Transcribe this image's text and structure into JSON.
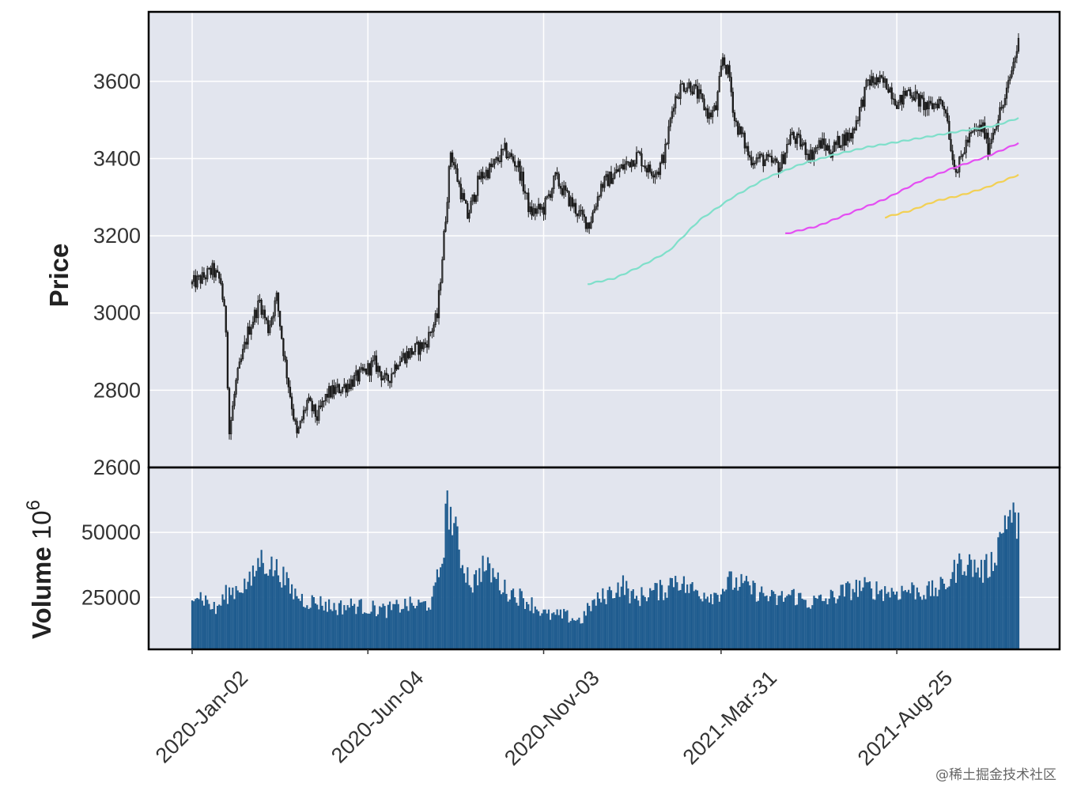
{
  "chart_data": {
    "type": "candlestick_with_volume",
    "price_panel": {
      "ylabel": "Price",
      "ylim": [
        2600,
        3780
      ],
      "yticks": [
        2600,
        2800,
        3000,
        3200,
        3400,
        3600
      ],
      "ohlc_close_waypoints": [
        {
          "i": 0,
          "v": 3075
        },
        {
          "i": 6,
          "v": 3090
        },
        {
          "i": 12,
          "v": 3110
        },
        {
          "i": 17,
          "v": 3080
        },
        {
          "i": 20,
          "v": 2960
        },
        {
          "i": 22,
          "v": 2690
        },
        {
          "i": 26,
          "v": 2820
        },
        {
          "i": 33,
          "v": 2950
        },
        {
          "i": 40,
          "v": 3030
        },
        {
          "i": 45,
          "v": 2960
        },
        {
          "i": 50,
          "v": 3040
        },
        {
          "i": 55,
          "v": 2870
        },
        {
          "i": 62,
          "v": 2680
        },
        {
          "i": 68,
          "v": 2770
        },
        {
          "i": 74,
          "v": 2730
        },
        {
          "i": 80,
          "v": 2790
        },
        {
          "i": 90,
          "v": 2810
        },
        {
          "i": 100,
          "v": 2840
        },
        {
          "i": 108,
          "v": 2870
        },
        {
          "i": 115,
          "v": 2820
        },
        {
          "i": 122,
          "v": 2880
        },
        {
          "i": 130,
          "v": 2900
        },
        {
          "i": 138,
          "v": 2920
        },
        {
          "i": 145,
          "v": 2990
        },
        {
          "i": 150,
          "v": 3250
        },
        {
          "i": 153,
          "v": 3420
        },
        {
          "i": 158,
          "v": 3330
        },
        {
          "i": 163,
          "v": 3250
        },
        {
          "i": 170,
          "v": 3350
        },
        {
          "i": 178,
          "v": 3380
        },
        {
          "i": 185,
          "v": 3420
        },
        {
          "i": 193,
          "v": 3380
        },
        {
          "i": 200,
          "v": 3260
        },
        {
          "i": 208,
          "v": 3270
        },
        {
          "i": 215,
          "v": 3350
        },
        {
          "i": 222,
          "v": 3300
        },
        {
          "i": 230,
          "v": 3250
        },
        {
          "i": 235,
          "v": 3230
        },
        {
          "i": 242,
          "v": 3330
        },
        {
          "i": 250,
          "v": 3360
        },
        {
          "i": 258,
          "v": 3390
        },
        {
          "i": 264,
          "v": 3410
        },
        {
          "i": 270,
          "v": 3370
        },
        {
          "i": 276,
          "v": 3370
        },
        {
          "i": 280,
          "v": 3420
        },
        {
          "i": 285,
          "v": 3550
        },
        {
          "i": 290,
          "v": 3590
        },
        {
          "i": 295,
          "v": 3590
        },
        {
          "i": 300,
          "v": 3560
        },
        {
          "i": 306,
          "v": 3510
        },
        {
          "i": 310,
          "v": 3530
        },
        {
          "i": 314,
          "v": 3660
        },
        {
          "i": 318,
          "v": 3610
        },
        {
          "i": 321,
          "v": 3500
        },
        {
          "i": 326,
          "v": 3450
        },
        {
          "i": 330,
          "v": 3400
        },
        {
          "i": 336,
          "v": 3400
        },
        {
          "i": 342,
          "v": 3390
        },
        {
          "i": 348,
          "v": 3380
        },
        {
          "i": 354,
          "v": 3460
        },
        {
          "i": 360,
          "v": 3440
        },
        {
          "i": 366,
          "v": 3410
        },
        {
          "i": 372,
          "v": 3440
        },
        {
          "i": 378,
          "v": 3420
        },
        {
          "i": 384,
          "v": 3450
        },
        {
          "i": 390,
          "v": 3460
        },
        {
          "i": 396,
          "v": 3540
        },
        {
          "i": 400,
          "v": 3600
        },
        {
          "i": 406,
          "v": 3600
        },
        {
          "i": 412,
          "v": 3590
        },
        {
          "i": 418,
          "v": 3540
        },
        {
          "i": 424,
          "v": 3580
        },
        {
          "i": 430,
          "v": 3550
        },
        {
          "i": 436,
          "v": 3530
        },
        {
          "i": 442,
          "v": 3550
        },
        {
          "i": 446,
          "v": 3530
        },
        {
          "i": 450,
          "v": 3400
        },
        {
          "i": 453,
          "v": 3370
        },
        {
          "i": 458,
          "v": 3440
        },
        {
          "i": 463,
          "v": 3470
        },
        {
          "i": 468,
          "v": 3480
        },
        {
          "i": 471,
          "v": 3430
        },
        {
          "i": 476,
          "v": 3500
        },
        {
          "i": 481,
          "v": 3550
        },
        {
          "i": 485,
          "v": 3630
        },
        {
          "i": 489,
          "v": 3700
        }
      ],
      "moving_averages": [
        {
          "name": "MA-cyan",
          "color": "#7fdfca",
          "points": [
            {
              "i": 234,
              "v": 3075
            },
            {
              "i": 250,
              "v": 3090
            },
            {
              "i": 265,
              "v": 3120
            },
            {
              "i": 282,
              "v": 3160
            },
            {
              "i": 300,
              "v": 3240
            },
            {
              "i": 320,
              "v": 3300
            },
            {
              "i": 340,
              "v": 3350
            },
            {
              "i": 360,
              "v": 3385
            },
            {
              "i": 380,
              "v": 3410
            },
            {
              "i": 400,
              "v": 3430
            },
            {
              "i": 420,
              "v": 3445
            },
            {
              "i": 440,
              "v": 3460
            },
            {
              "i": 460,
              "v": 3475
            },
            {
              "i": 475,
              "v": 3485
            },
            {
              "i": 489,
              "v": 3505
            }
          ]
        },
        {
          "name": "MA-magenta",
          "color": "#e44ef2",
          "points": [
            {
              "i": 351,
              "v": 3205
            },
            {
              "i": 370,
              "v": 3225
            },
            {
              "i": 390,
              "v": 3260
            },
            {
              "i": 410,
              "v": 3295
            },
            {
              "i": 430,
              "v": 3340
            },
            {
              "i": 450,
              "v": 3375
            },
            {
              "i": 470,
              "v": 3405
            },
            {
              "i": 489,
              "v": 3440
            }
          ]
        },
        {
          "name": "MA-yellow",
          "color": "#f2d054",
          "points": [
            {
              "i": 410,
              "v": 3248
            },
            {
              "i": 425,
              "v": 3265
            },
            {
              "i": 440,
              "v": 3290
            },
            {
              "i": 455,
              "v": 3305
            },
            {
              "i": 470,
              "v": 3325
            },
            {
              "i": 489,
              "v": 3358
            }
          ]
        }
      ]
    },
    "volume_panel": {
      "ylabel": "Volume",
      "scale_label": "10",
      "scale_exponent": "6",
      "ylim": [
        5000,
        75000
      ],
      "yticks": [
        25000,
        50000
      ],
      "ytick_labels": [
        "25000",
        "50000"
      ],
      "volume_waypoints": [
        {
          "i": 0,
          "v": 28000
        },
        {
          "i": 8,
          "v": 24000
        },
        {
          "i": 14,
          "v": 20000
        },
        {
          "i": 20,
          "v": 26000
        },
        {
          "i": 28,
          "v": 29000
        },
        {
          "i": 35,
          "v": 31000
        },
        {
          "i": 40,
          "v": 40000
        },
        {
          "i": 46,
          "v": 37000
        },
        {
          "i": 52,
          "v": 35000
        },
        {
          "i": 58,
          "v": 28000
        },
        {
          "i": 66,
          "v": 24000
        },
        {
          "i": 75,
          "v": 23000
        },
        {
          "i": 85,
          "v": 21000
        },
        {
          "i": 95,
          "v": 22000
        },
        {
          "i": 105,
          "v": 21000
        },
        {
          "i": 115,
          "v": 20000
        },
        {
          "i": 125,
          "v": 22000
        },
        {
          "i": 135,
          "v": 22000
        },
        {
          "i": 142,
          "v": 23000
        },
        {
          "i": 148,
          "v": 40000
        },
        {
          "i": 151,
          "v": 61000
        },
        {
          "i": 155,
          "v": 52000
        },
        {
          "i": 160,
          "v": 38000
        },
        {
          "i": 166,
          "v": 30000
        },
        {
          "i": 172,
          "v": 37000
        },
        {
          "i": 178,
          "v": 34000
        },
        {
          "i": 185,
          "v": 28000
        },
        {
          "i": 192,
          "v": 26000
        },
        {
          "i": 200,
          "v": 23000
        },
        {
          "i": 210,
          "v": 18000
        },
        {
          "i": 220,
          "v": 18000
        },
        {
          "i": 230,
          "v": 16000
        },
        {
          "i": 236,
          "v": 22000
        },
        {
          "i": 245,
          "v": 26000
        },
        {
          "i": 255,
          "v": 30000
        },
        {
          "i": 262,
          "v": 24000
        },
        {
          "i": 270,
          "v": 27000
        },
        {
          "i": 280,
          "v": 28000
        },
        {
          "i": 286,
          "v": 33000
        },
        {
          "i": 292,
          "v": 29000
        },
        {
          "i": 300,
          "v": 27000
        },
        {
          "i": 310,
          "v": 26000
        },
        {
          "i": 318,
          "v": 31000
        },
        {
          "i": 325,
          "v": 30000
        },
        {
          "i": 335,
          "v": 27000
        },
        {
          "i": 345,
          "v": 24000
        },
        {
          "i": 355,
          "v": 26000
        },
        {
          "i": 365,
          "v": 23000
        },
        {
          "i": 375,
          "v": 24000
        },
        {
          "i": 385,
          "v": 27000
        },
        {
          "i": 395,
          "v": 29000
        },
        {
          "i": 405,
          "v": 28000
        },
        {
          "i": 415,
          "v": 27000
        },
        {
          "i": 425,
          "v": 28000
        },
        {
          "i": 435,
          "v": 27000
        },
        {
          "i": 445,
          "v": 29000
        },
        {
          "i": 450,
          "v": 34000
        },
        {
          "i": 456,
          "v": 39000
        },
        {
          "i": 462,
          "v": 37000
        },
        {
          "i": 468,
          "v": 35000
        },
        {
          "i": 474,
          "v": 39000
        },
        {
          "i": 478,
          "v": 48000
        },
        {
          "i": 482,
          "v": 57000
        },
        {
          "i": 486,
          "v": 55000
        },
        {
          "i": 489,
          "v": 53000
        }
      ],
      "color": "#1f5c8f"
    },
    "x_axis": {
      "n_bars": 490,
      "tick_positions": [
        0,
        104,
        208,
        313,
        417
      ],
      "tick_labels": [
        "2020-Jan-02",
        "2020-Jun-04",
        "2020-Nov-03",
        "2021-Mar-31",
        "2021-Aug-25"
      ]
    },
    "colors": {
      "panel_background": "#e2e5ee",
      "grid": "#ffffff",
      "candle": "#1a1a1a",
      "frame": "#000000"
    }
  },
  "watermark": "@稀土掘金技术社区"
}
